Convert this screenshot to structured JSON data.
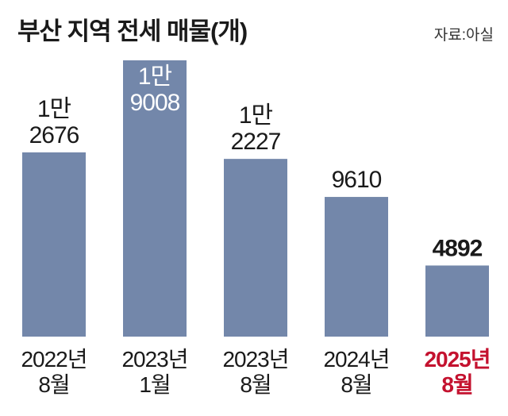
{
  "chart_data": {
    "type": "bar",
    "title": "부산 지역 전세 매물(개)",
    "source": "자료:아실",
    "categories": [
      "2022년\n8월",
      "2023년\n1월",
      "2023년\n8월",
      "2024년\n8월",
      "2025년\n8월"
    ],
    "values": [
      12676,
      19008,
      12227,
      9610,
      4892
    ],
    "value_labels": [
      "1만\n2676",
      "1만\n9008",
      "1만\n2227",
      "9610",
      "4892"
    ],
    "color": "#7387aa",
    "highlight_index": 4,
    "highlight_color": "#c4122f"
  }
}
